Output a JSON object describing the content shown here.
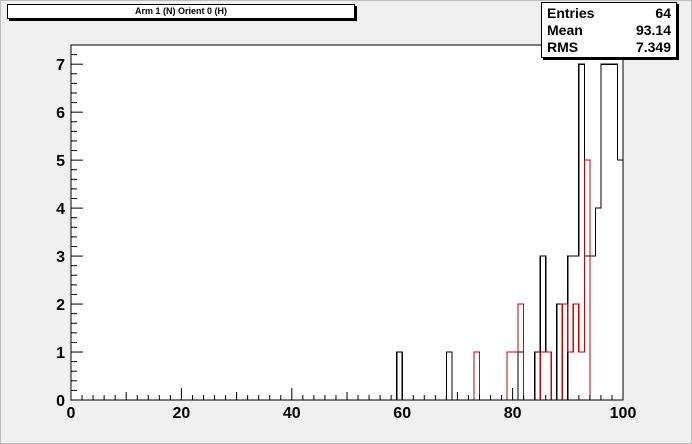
{
  "title": "Arm 1 (N) Orient 0 (H)",
  "stats": {
    "entries_label": "Entries",
    "entries_value": "64",
    "mean_label": "Mean",
    "mean_value": "93.14",
    "rms_label": "RMS",
    "rms_value": "7.349"
  },
  "colors": {
    "frame_bg": "#f0f0f0",
    "plot_bg": "#ffffff",
    "series_black": "#000000",
    "series_red": "#cc0000"
  },
  "chart_data": {
    "type": "histogram",
    "title": "Arm 1 (N) Orient 0 (H)",
    "xlim": [
      0,
      100
    ],
    "ylim": [
      0,
      7.4
    ],
    "bin_width": 1,
    "grid": false,
    "x_ticks": [
      0,
      20,
      40,
      60,
      80,
      100
    ],
    "y_ticks": [
      0,
      1,
      2,
      3,
      4,
      5,
      6,
      7
    ],
    "series": [
      {
        "color": "#000000",
        "counts": {
          "59": 1,
          "68": 1,
          "81": 1,
          "84": 1,
          "85": 3,
          "86": 1,
          "88": 2,
          "90": 3,
          "91": 3,
          "92": 7,
          "93": 3,
          "94": 3,
          "95": 4,
          "96": 7,
          "97": 7,
          "98": 7,
          "99": 5,
          "100": 6
        }
      },
      {
        "color": "#cc0000",
        "counts": {
          "73": 1,
          "79": 1,
          "80": 1,
          "81": 2,
          "85": 1,
          "86": 1,
          "89": 2,
          "90": 1,
          "91": 2,
          "92": 1,
          "93": 5
        }
      }
    ]
  }
}
